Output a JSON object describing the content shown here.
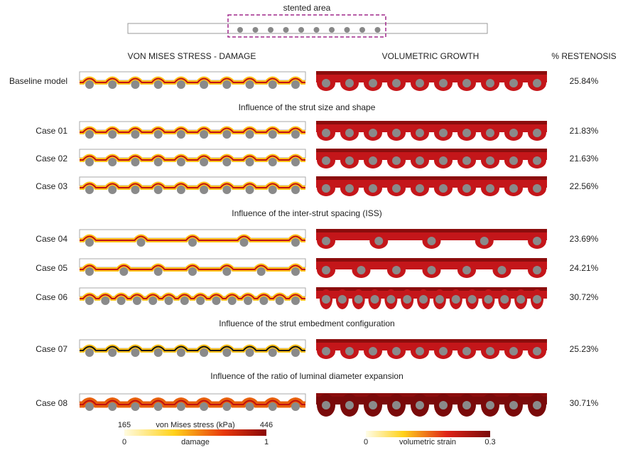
{
  "header": {
    "stented_label": "stented area"
  },
  "columns": [
    "VON MISES STRESS - DAMAGE",
    "VOLUMETRIC GROWTH",
    "% RESTENOSIS"
  ],
  "rows": [
    {
      "label": "Baseline model",
      "restenosis": "25.84%"
    },
    {
      "label": "Case 01",
      "restenosis": "21.83%"
    },
    {
      "label": "Case 02",
      "restenosis": "21.63%"
    },
    {
      "label": "Case 03",
      "restenosis": "22.56%"
    },
    {
      "label": "Case 04",
      "restenosis": "23.69%"
    },
    {
      "label": "Case 05",
      "restenosis": "24.21%"
    },
    {
      "label": "Case 06",
      "restenosis": "30.72%"
    },
    {
      "label": "Case 07",
      "restenosis": "25.23%"
    },
    {
      "label": "Case 08",
      "restenosis": "30.71%"
    }
  ],
  "sections": [
    "Influence of the strut size and shape",
    "Influence of the inter-strut spacing (ISS)",
    "Influence of the strut embedment configuration",
    "Influence of the ratio of luminal diameter expansion"
  ],
  "legend_stress": {
    "title": "von Mises stress (kPa)",
    "min": "165",
    "max": "446",
    "damage_title": "damage",
    "damage_min": "0",
    "damage_max": "1"
  },
  "legend_growth": {
    "title": "volumetric strain",
    "min": "0",
    "max": "0.3"
  }
}
